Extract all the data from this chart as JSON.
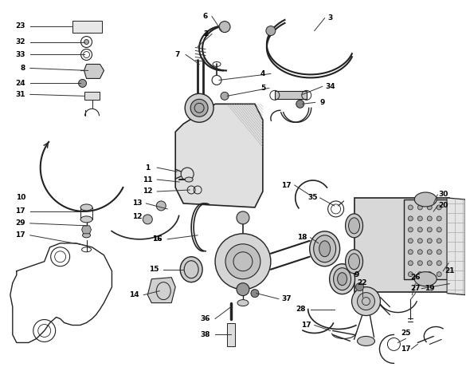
{
  "bg_color": "#ffffff",
  "fig_width": 5.85,
  "fig_height": 4.75,
  "dpi": 100,
  "lc": "#222222",
  "label_fontsize": 6.5,
  "label_fontweight": "bold"
}
